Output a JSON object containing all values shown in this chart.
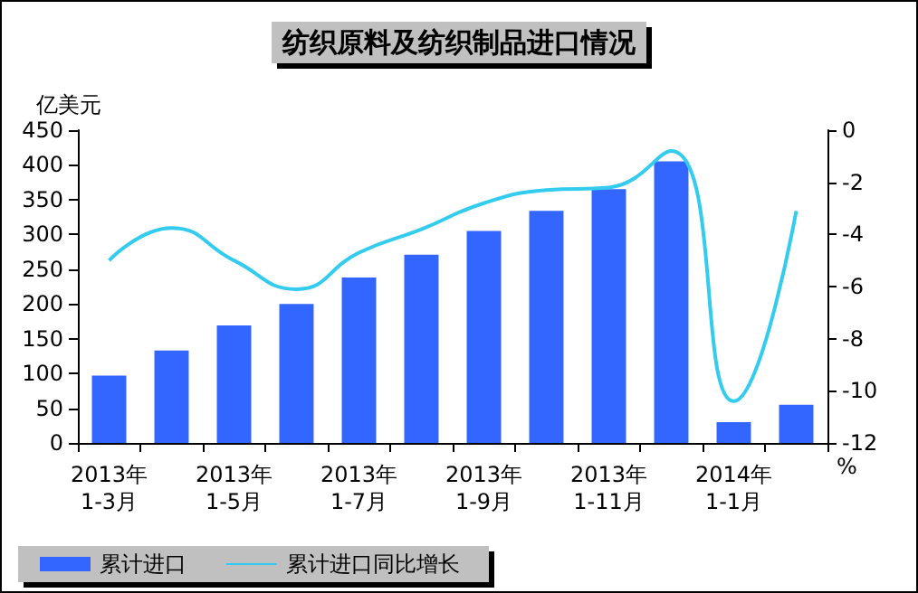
{
  "chart_data": {
    "type": "bar",
    "title": "纺织原料及纺织制品进口情况",
    "ylabel": "亿美元",
    "y2label": "%",
    "categories": [
      "2013年\n1-3月",
      null,
      "2013年\n1-5月",
      null,
      "2013年\n1-7月",
      null,
      "2013年\n1-9月",
      null,
      "2013年\n1-11月",
      null,
      "2014年\n1-1月",
      null
    ],
    "series": [
      {
        "name": "累计进口",
        "color": "#3366ff",
        "values": [
          97,
          133,
          169,
          200,
          238,
          271,
          305,
          334,
          365,
          405,
          30,
          55
        ]
      },
      {
        "name": "累计进口同比增长",
        "type": "line",
        "axis": "y2",
        "color": "#33ccee",
        "values": [
          -5.0,
          -3.75,
          -5.0,
          -6.1,
          -4.7,
          -3.8,
          -2.8,
          -2.3,
          -2.2,
          -0.8,
          -10.4,
          -3.1
        ]
      }
    ],
    "ylim": [
      0,
      450
    ],
    "yticks": [
      0,
      50,
      100,
      150,
      200,
      250,
      300,
      350,
      400,
      450
    ],
    "y2lim": [
      -12,
      0
    ],
    "y2ticks": [
      -12,
      -10,
      -8,
      -6,
      -4,
      -2,
      0
    ],
    "grid": false,
    "legend": "bottom left",
    "marker": "none",
    "line_style": "solid"
  }
}
